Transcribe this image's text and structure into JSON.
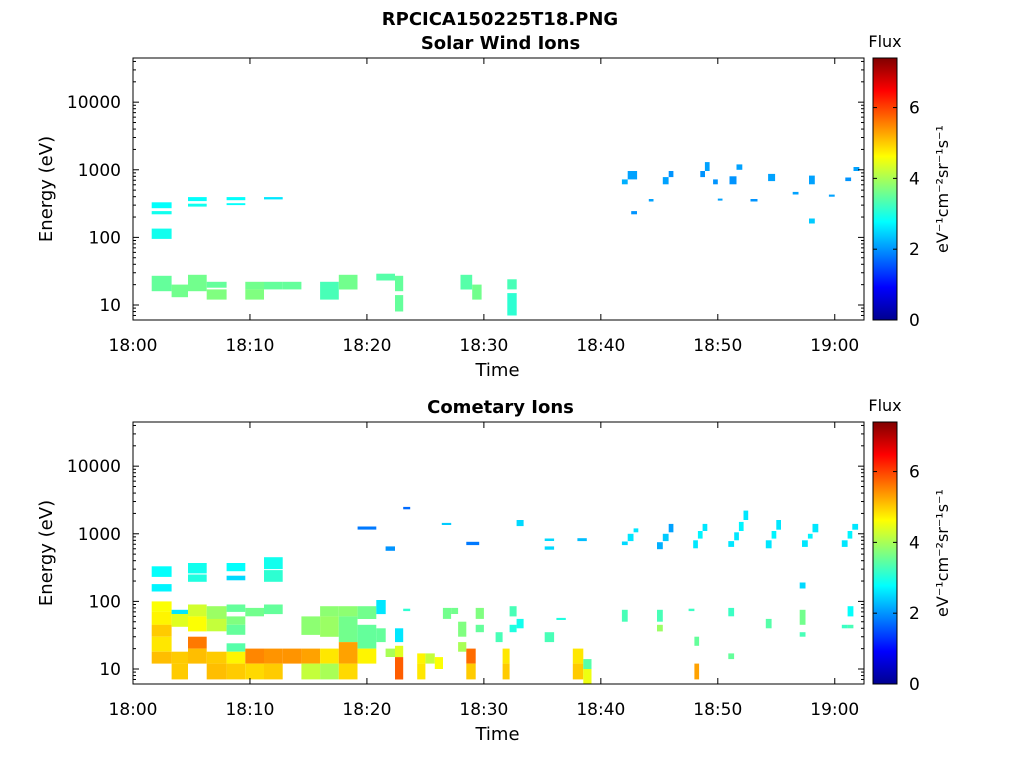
{
  "figure": {
    "title": "RPCICA150225T18.PNG"
  },
  "chart_data": [
    {
      "type": "heatmap",
      "title": "Solar Wind Ions",
      "xlabel": "Time",
      "ylabel": "Energy (eV)",
      "x_ticks": [
        "18:00",
        "18:10",
        "18:20",
        "18:30",
        "18:40",
        "18:50",
        "19:00"
      ],
      "x_range_minutes": [
        0,
        62.5
      ],
      "y_scale": "log",
      "y_range": [
        6,
        45000
      ],
      "y_ticks": [
        10,
        100,
        1000,
        10000
      ],
      "y_tick_labels": [
        "10",
        "100",
        "1000",
        "10000"
      ],
      "colorbar": {
        "label": "Flux",
        "unit": "eV⁻¹cm⁻²sr⁻¹s⁻¹",
        "range": [
          0,
          7.4
        ],
        "ticks": [
          "0",
          "2",
          "4",
          "6"
        ],
        "colormap": "jet"
      },
      "cells": [
        [
          1.6,
          3.3,
          270,
          330,
          2.8
        ],
        [
          1.6,
          3.3,
          220,
          245,
          2.9
        ],
        [
          1.6,
          3.3,
          95,
          135,
          2.9
        ],
        [
          4.7,
          6.3,
          345,
          395,
          2.8
        ],
        [
          4.7,
          6.3,
          285,
          315,
          2.9
        ],
        [
          8.0,
          9.6,
          355,
          395,
          2.8
        ],
        [
          8.0,
          9.6,
          300,
          320,
          2.8
        ],
        [
          11.2,
          12.8,
          365,
          395,
          2.6
        ],
        [
          1.6,
          3.3,
          16,
          27,
          3.5
        ],
        [
          3.3,
          4.7,
          13,
          20,
          3.6
        ],
        [
          4.7,
          6.3,
          16,
          28,
          3.6
        ],
        [
          6.3,
          8.0,
          18,
          22,
          3.5
        ],
        [
          6.3,
          8.0,
          12,
          17,
          3.7
        ],
        [
          9.6,
          11.2,
          17,
          22,
          3.6
        ],
        [
          9.6,
          11.2,
          12,
          17,
          3.7
        ],
        [
          11.2,
          12.8,
          17,
          22,
          3.5
        ],
        [
          12.8,
          14.4,
          17,
          22,
          3.5
        ],
        [
          16.0,
          17.6,
          12,
          22,
          3.3
        ],
        [
          17.6,
          19.2,
          17,
          28,
          3.6
        ],
        [
          20.8,
          22.4,
          23,
          29,
          3.4
        ],
        [
          22.4,
          23.1,
          16,
          27,
          3.5
        ],
        [
          22.4,
          23.1,
          8,
          14,
          3.5
        ],
        [
          28.0,
          29.0,
          17,
          28,
          3.4
        ],
        [
          29.0,
          29.8,
          12,
          20,
          3.6
        ],
        [
          32.0,
          32.8,
          17,
          24,
          3.3
        ],
        [
          32.0,
          32.8,
          7,
          15,
          3.1
        ],
        [
          41.8,
          42.3,
          610,
          720,
          2.2
        ],
        [
          42.3,
          43.1,
          720,
          960,
          2.1
        ],
        [
          42.6,
          43.1,
          220,
          245,
          2.0
        ],
        [
          44.1,
          44.5,
          340,
          370,
          2.1
        ],
        [
          45.3,
          45.8,
          610,
          780,
          2.1
        ],
        [
          45.8,
          46.2,
          780,
          960,
          2.0
        ],
        [
          48.5,
          48.9,
          780,
          960,
          2.0
        ],
        [
          48.9,
          49.3,
          960,
          1300,
          2.1
        ],
        [
          49.6,
          50.0,
          610,
          720,
          2.0
        ],
        [
          50.0,
          50.4,
          350,
          375,
          2.1
        ],
        [
          51.0,
          51.6,
          610,
          800,
          2.0
        ],
        [
          51.6,
          52.1,
          1000,
          1200,
          2.1
        ],
        [
          52.8,
          53.4,
          340,
          370,
          2.0
        ],
        [
          54.3,
          54.9,
          680,
          870,
          2.1
        ],
        [
          56.4,
          56.9,
          430,
          470,
          2.1
        ],
        [
          57.8,
          58.3,
          160,
          190,
          2.4
        ],
        [
          57.8,
          58.3,
          610,
          820,
          2.1
        ],
        [
          59.5,
          60.0,
          400,
          430,
          2.1
        ],
        [
          60.9,
          61.4,
          680,
          770,
          2.0
        ],
        [
          61.6,
          62.1,
          960,
          1100,
          2.1
        ]
      ]
    },
    {
      "type": "heatmap",
      "title": "Cometary Ions",
      "xlabel": "Time",
      "ylabel": "Energy (eV)",
      "x_ticks": [
        "18:00",
        "18:10",
        "18:20",
        "18:30",
        "18:40",
        "18:50",
        "19:00"
      ],
      "x_range_minutes": [
        0,
        62.5
      ],
      "y_scale": "log",
      "y_range": [
        6,
        45000
      ],
      "y_ticks": [
        10,
        100,
        1000,
        10000
      ],
      "y_tick_labels": [
        "10",
        "100",
        "1000",
        "10000"
      ],
      "colorbar": {
        "label": "Flux",
        "unit": "eV⁻¹cm⁻²sr⁻¹s⁻¹",
        "range": [
          0,
          7.4
        ],
        "ticks": [
          "0",
          "2",
          "4",
          "6"
        ],
        "colormap": "jet"
      },
      "cells": [
        [
          1.6,
          3.3,
          230,
          330,
          2.8
        ],
        [
          1.6,
          3.3,
          140,
          180,
          2.7
        ],
        [
          4.7,
          6.3,
          260,
          370,
          2.9
        ],
        [
          4.7,
          6.3,
          195,
          250,
          3.0
        ],
        [
          8.0,
          9.6,
          280,
          370,
          2.8
        ],
        [
          8.0,
          9.6,
          205,
          240,
          2.5
        ],
        [
          11.2,
          12.8,
          300,
          450,
          2.9
        ],
        [
          11.2,
          12.8,
          195,
          290,
          3.1
        ],
        [
          19.2,
          20.8,
          1150,
          1280,
          1.8
        ],
        [
          21.6,
          22.4,
          560,
          650,
          2.0
        ],
        [
          23.1,
          23.7,
          2300,
          2500,
          1.7
        ],
        [
          26.4,
          27.2,
          1350,
          1450,
          2.4
        ],
        [
          28.5,
          29.6,
          680,
          760,
          1.8
        ],
        [
          32.8,
          33.4,
          1300,
          1600,
          2.5
        ],
        [
          35.2,
          36.0,
          580,
          650,
          2.5
        ],
        [
          35.2,
          36.0,
          780,
          850,
          2.5
        ],
        [
          38.0,
          38.8,
          780,
          860,
          2.3
        ],
        [
          41.8,
          42.3,
          680,
          770,
          2.5
        ],
        [
          42.3,
          42.8,
          780,
          1000,
          2.6
        ],
        [
          42.8,
          43.2,
          1050,
          1200,
          2.6
        ],
        [
          44.8,
          45.3,
          590,
          750,
          2.2
        ],
        [
          45.3,
          45.8,
          780,
          1000,
          2.4
        ],
        [
          45.8,
          46.2,
          1050,
          1400,
          2.1
        ],
        [
          47.9,
          48.3,
          610,
          800,
          2.6
        ],
        [
          48.3,
          48.7,
          850,
          1100,
          2.7
        ],
        [
          48.7,
          49.1,
          1100,
          1400,
          2.6
        ],
        [
          50.9,
          51.4,
          640,
          780,
          2.6
        ],
        [
          51.4,
          51.8,
          800,
          1050,
          2.6
        ],
        [
          51.8,
          52.2,
          1100,
          1500,
          2.7
        ],
        [
          52.2,
          52.6,
          1600,
          2200,
          2.6
        ],
        [
          54.1,
          54.6,
          610,
          800,
          2.6
        ],
        [
          54.6,
          55.0,
          850,
          1100,
          2.7
        ],
        [
          55.0,
          55.4,
          1150,
          1600,
          2.6
        ],
        [
          57.2,
          57.7,
          640,
          800,
          2.6
        ],
        [
          57.7,
          58.1,
          850,
          1000,
          2.7
        ],
        [
          58.1,
          58.6,
          1050,
          1400,
          2.6
        ],
        [
          60.6,
          61.1,
          640,
          800,
          2.6
        ],
        [
          61.1,
          61.5,
          850,
          1100,
          2.7
        ],
        [
          61.5,
          62.0,
          1150,
          1400,
          2.6
        ],
        [
          1.6,
          3.3,
          70,
          100,
          4.6
        ],
        [
          1.6,
          3.3,
          45,
          70,
          4.7
        ],
        [
          1.6,
          3.3,
          30,
          45,
          5.0
        ],
        [
          1.6,
          3.3,
          18,
          30,
          4.8
        ],
        [
          1.6,
          3.3,
          12,
          18,
          5.1
        ],
        [
          3.3,
          4.7,
          65,
          75,
          2.6
        ],
        [
          3.3,
          4.7,
          42,
          65,
          4.4
        ],
        [
          3.3,
          4.7,
          12,
          18,
          5.0
        ],
        [
          3.3,
          4.7,
          7,
          12,
          5.0
        ],
        [
          4.7,
          6.3,
          60,
          90,
          4.3
        ],
        [
          4.7,
          6.3,
          36,
          60,
          4.6
        ],
        [
          4.7,
          6.3,
          20,
          30,
          5.6
        ],
        [
          4.7,
          6.3,
          12,
          20,
          5.1
        ],
        [
          6.3,
          8.0,
          55,
          85,
          3.9
        ],
        [
          6.3,
          8.0,
          36,
          55,
          4.2
        ],
        [
          6.3,
          8.0,
          12,
          18,
          5.0
        ],
        [
          6.3,
          8.0,
          7,
          12,
          5.1
        ],
        [
          8.0,
          9.6,
          70,
          90,
          3.5
        ],
        [
          8.0,
          9.6,
          45,
          60,
          3.7
        ],
        [
          8.0,
          9.6,
          32,
          45,
          3.5
        ],
        [
          8.0,
          9.6,
          18,
          24,
          3.4
        ],
        [
          8.0,
          9.6,
          12,
          18,
          4.7
        ],
        [
          8.0,
          9.6,
          7,
          12,
          5.0
        ],
        [
          9.6,
          11.2,
          60,
          80,
          3.6
        ],
        [
          9.6,
          11.2,
          12,
          20,
          5.5
        ],
        [
          9.6,
          11.2,
          7,
          12,
          4.9
        ],
        [
          11.2,
          12.8,
          65,
          90,
          3.5
        ],
        [
          11.2,
          12.8,
          12,
          20,
          5.4
        ],
        [
          11.2,
          12.8,
          7,
          12,
          5.0
        ],
        [
          12.8,
          14.4,
          12,
          20,
          5.4
        ],
        [
          14.4,
          16.0,
          32,
          60,
          3.8
        ],
        [
          14.4,
          16.0,
          12,
          20,
          5.3
        ],
        [
          14.4,
          16.0,
          7,
          12,
          4.2
        ],
        [
          16.0,
          17.6,
          60,
          85,
          3.8
        ],
        [
          16.0,
          17.6,
          30,
          60,
          3.9
        ],
        [
          16.0,
          17.6,
          12,
          20,
          4.8
        ],
        [
          16.0,
          17.6,
          7,
          12,
          4.0
        ],
        [
          17.6,
          19.2,
          60,
          85,
          3.8
        ],
        [
          17.6,
          19.2,
          25,
          60,
          3.6
        ],
        [
          17.6,
          19.2,
          12,
          25,
          5.3
        ],
        [
          17.6,
          19.2,
          7,
          12,
          4.9
        ],
        [
          19.2,
          20.8,
          55,
          85,
          3.6
        ],
        [
          19.2,
          20.8,
          20,
          45,
          3.5
        ],
        [
          19.2,
          20.8,
          12,
          20,
          4.7
        ],
        [
          20.8,
          21.6,
          65,
          105,
          2.6
        ],
        [
          20.8,
          21.6,
          25,
          40,
          3.5
        ],
        [
          21.6,
          22.4,
          15,
          20,
          4.0
        ],
        [
          22.4,
          23.1,
          25,
          40,
          2.6
        ],
        [
          22.4,
          23.1,
          15,
          22,
          4.4
        ],
        [
          22.4,
          23.1,
          7,
          15,
          5.8
        ],
        [
          23.1,
          23.7,
          72,
          78,
          3.1
        ],
        [
          24.3,
          25.0,
          12,
          17,
          4.7
        ],
        [
          24.3,
          25.0,
          7,
          12,
          4.8
        ],
        [
          25.0,
          25.8,
          12,
          17,
          4.2
        ],
        [
          25.8,
          26.5,
          10,
          15,
          4.6
        ],
        [
          26.5,
          27.2,
          55,
          80,
          3.6
        ],
        [
          27.2,
          27.8,
          65,
          80,
          3.6
        ],
        [
          27.8,
          28.5,
          30,
          50,
          3.7
        ],
        [
          27.8,
          28.5,
          18,
          25,
          4.0
        ],
        [
          28.5,
          29.3,
          12,
          20,
          5.7
        ],
        [
          28.5,
          29.3,
          7,
          12,
          5.0
        ],
        [
          29.3,
          30.0,
          55,
          80,
          3.7
        ],
        [
          29.3,
          30.0,
          35,
          45,
          3.5
        ],
        [
          31.0,
          31.6,
          25,
          35,
          3.3
        ],
        [
          31.6,
          32.2,
          12,
          20,
          4.8
        ],
        [
          31.6,
          32.2,
          7,
          12,
          5.0
        ],
        [
          32.2,
          32.8,
          60,
          85,
          3.3
        ],
        [
          32.2,
          32.8,
          35,
          45,
          3.0
        ],
        [
          32.8,
          33.4,
          40,
          55,
          2.9
        ],
        [
          35.2,
          36.0,
          25,
          35,
          3.3
        ],
        [
          36.2,
          37.0,
          53,
          57,
          3.0
        ],
        [
          37.6,
          38.5,
          12,
          20,
          4.8
        ],
        [
          37.6,
          38.5,
          7,
          12,
          5.0
        ],
        [
          38.5,
          39.2,
          10,
          14,
          3.4
        ],
        [
          38.5,
          39.2,
          6,
          10,
          4.5
        ],
        [
          41.8,
          42.3,
          50,
          75,
          3.3
        ],
        [
          44.8,
          45.3,
          50,
          75,
          3.3
        ],
        [
          44.8,
          45.3,
          36,
          45,
          3.9
        ],
        [
          47.5,
          48.0,
          72,
          78,
          3.2
        ],
        [
          48.0,
          48.4,
          22,
          30,
          3.5
        ],
        [
          48.0,
          48.4,
          7,
          12,
          5.3
        ],
        [
          50.9,
          51.4,
          60,
          80,
          3.2
        ],
        [
          50.9,
          51.4,
          14,
          17,
          3.5
        ],
        [
          54.1,
          54.6,
          40,
          55,
          3.4
        ],
        [
          57.0,
          57.5,
          155,
          190,
          2.5
        ],
        [
          57.0,
          57.5,
          45,
          75,
          3.6
        ],
        [
          57.0,
          57.5,
          30,
          35,
          3.3
        ],
        [
          60.6,
          61.1,
          40,
          45,
          3.2
        ],
        [
          61.1,
          61.6,
          40,
          45,
          3.3
        ],
        [
          61.1,
          61.6,
          60,
          85,
          2.8
        ]
      ]
    }
  ]
}
